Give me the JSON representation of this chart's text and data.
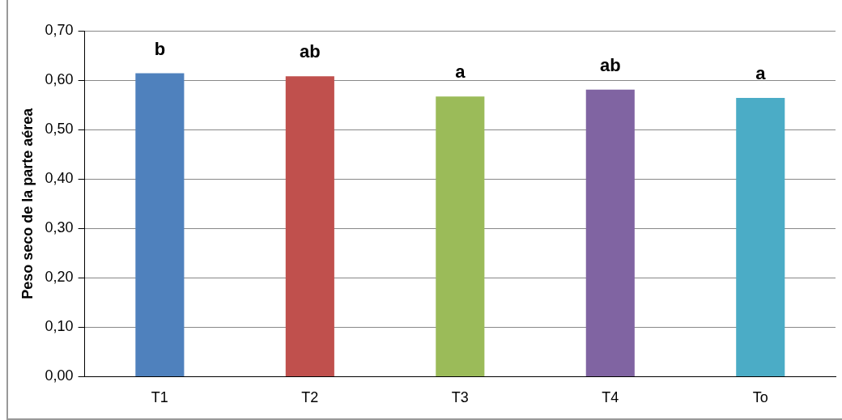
{
  "chart_data": {
    "type": "bar",
    "ylabel": "Peso seco de la parte aérea",
    "categories": [
      "T1",
      "T2",
      "T3",
      "T4",
      "To"
    ],
    "values": [
      0.614,
      0.608,
      0.567,
      0.581,
      0.564
    ],
    "colors": [
      "#4f81bd",
      "#c0504d",
      "#9bbb59",
      "#8064a2",
      "#4bacc6"
    ],
    "ylim": [
      0,
      0.7
    ],
    "yticks": [
      {
        "value": 0,
        "label": "0,00"
      },
      {
        "value": 0.1,
        "label": "0,10"
      },
      {
        "value": 0.2,
        "label": "0,20"
      },
      {
        "value": 0.3,
        "label": "0,30"
      },
      {
        "value": 0.4,
        "label": "0,40"
      },
      {
        "value": 0.5,
        "label": "0,50"
      },
      {
        "value": 0.6,
        "label": "0,60"
      },
      {
        "value": 0.7,
        "label": "0,70"
      }
    ],
    "grid": "y",
    "legend": false,
    "annotations": [
      {
        "text": "b",
        "x": "T1",
        "y": 0.614
      },
      {
        "text": "ab",
        "x": "T2",
        "y": 0.608
      },
      {
        "text": "a",
        "x": "T3",
        "y": 0.567
      },
      {
        "text": "ab",
        "x": "T4",
        "y": 0.581
      },
      {
        "text": "a",
        "x": "To",
        "y": 0.564
      }
    ]
  }
}
